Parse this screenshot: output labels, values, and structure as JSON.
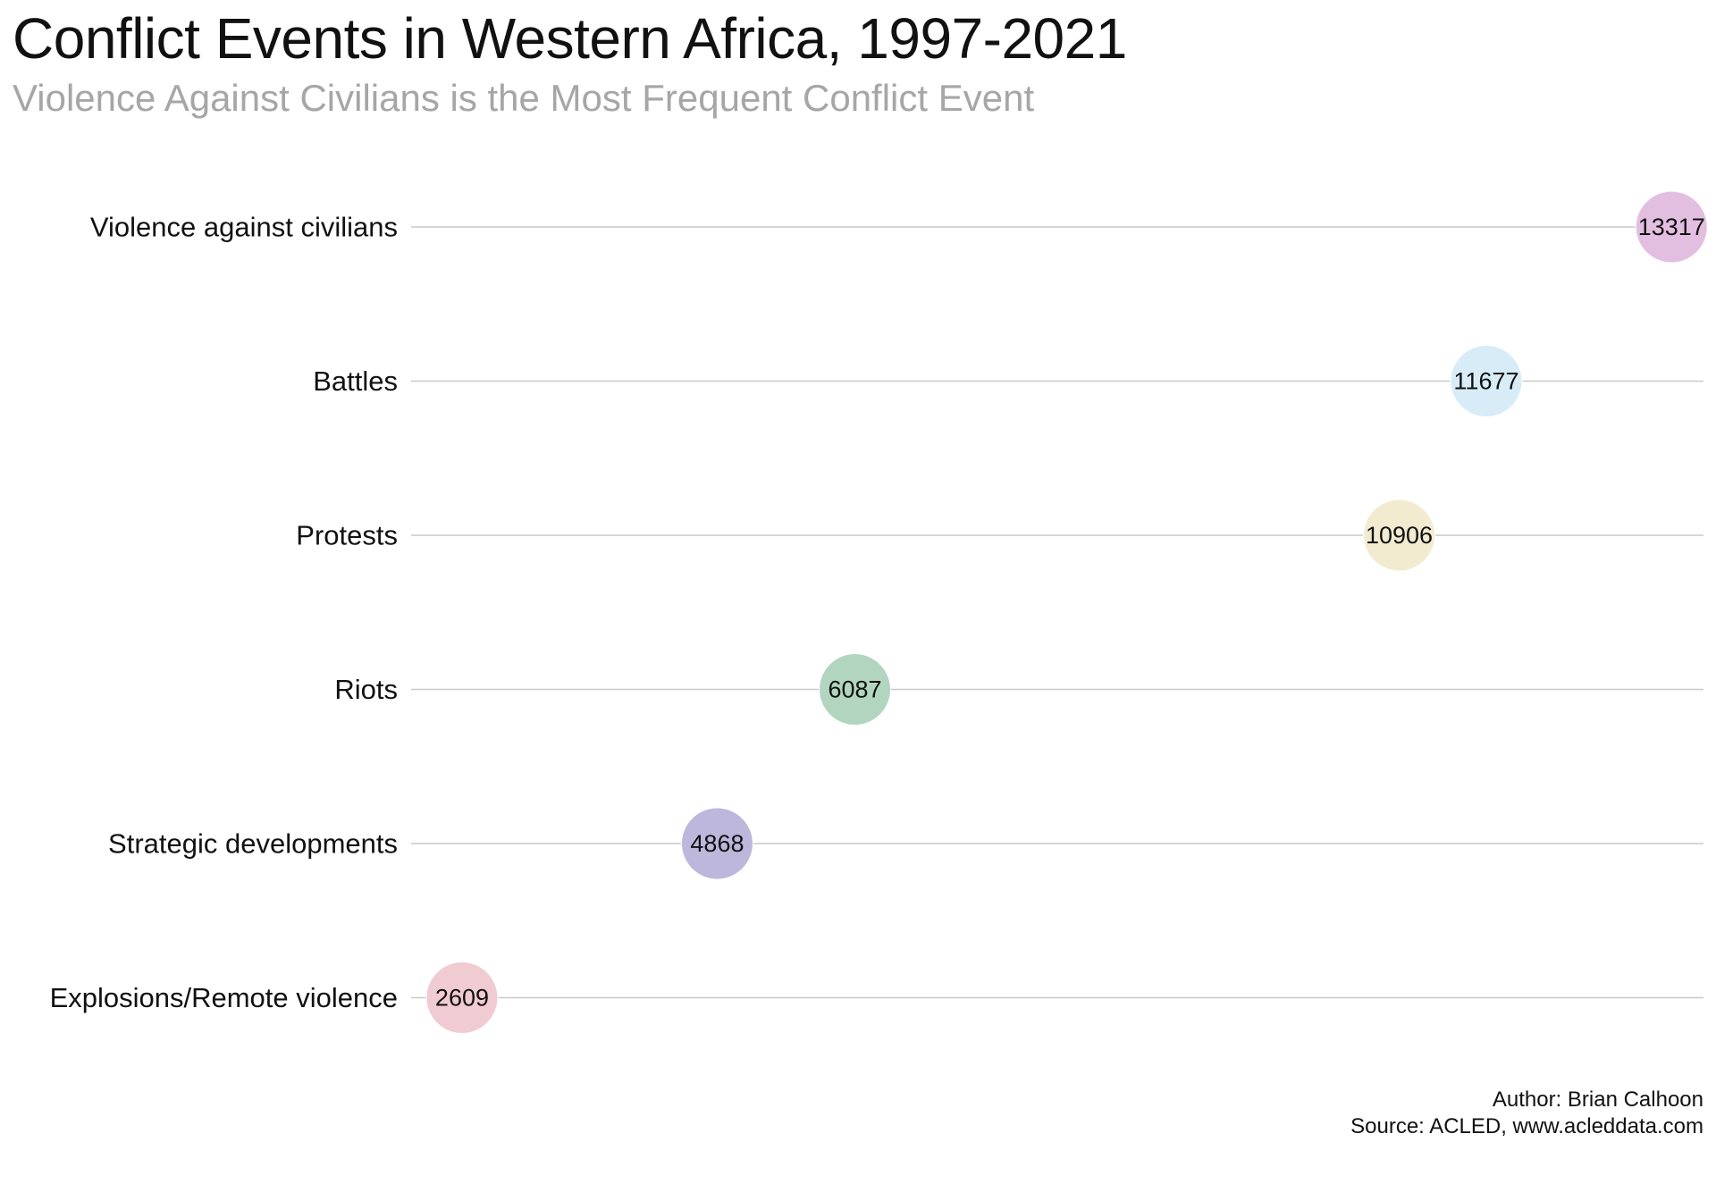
{
  "header": {
    "title": "Conflict Events in Western Africa, 1997-2021",
    "subtitle": "Violence Against Civilians is the Most Frequent Conflict Event"
  },
  "caption": {
    "author": "Author: Brian Calhoon",
    "source": "Source: ACLED, www.acleddata.com"
  },
  "chart_data": {
    "type": "scatter",
    "title": "Conflict Events in Western Africa, 1997-2021",
    "subtitle": "Violence Against Civilians is the Most Frequent Conflict Event",
    "xlabel": "",
    "ylabel": "",
    "grid": "horizontal lines only",
    "xlim": [
      2000,
      13600
    ],
    "categories": [
      "Violence against civilians",
      "Battles",
      "Protests",
      "Riots",
      "Strategic developments",
      "Explosions/Remote violence"
    ],
    "values": [
      13317,
      11677,
      10906,
      6087,
      4868,
      2609
    ],
    "colors": [
      "#e2bfe0",
      "#d7ecf7",
      "#f2ebcf",
      "#b2d5bf",
      "#bcb7db",
      "#f0cbd1"
    ]
  }
}
